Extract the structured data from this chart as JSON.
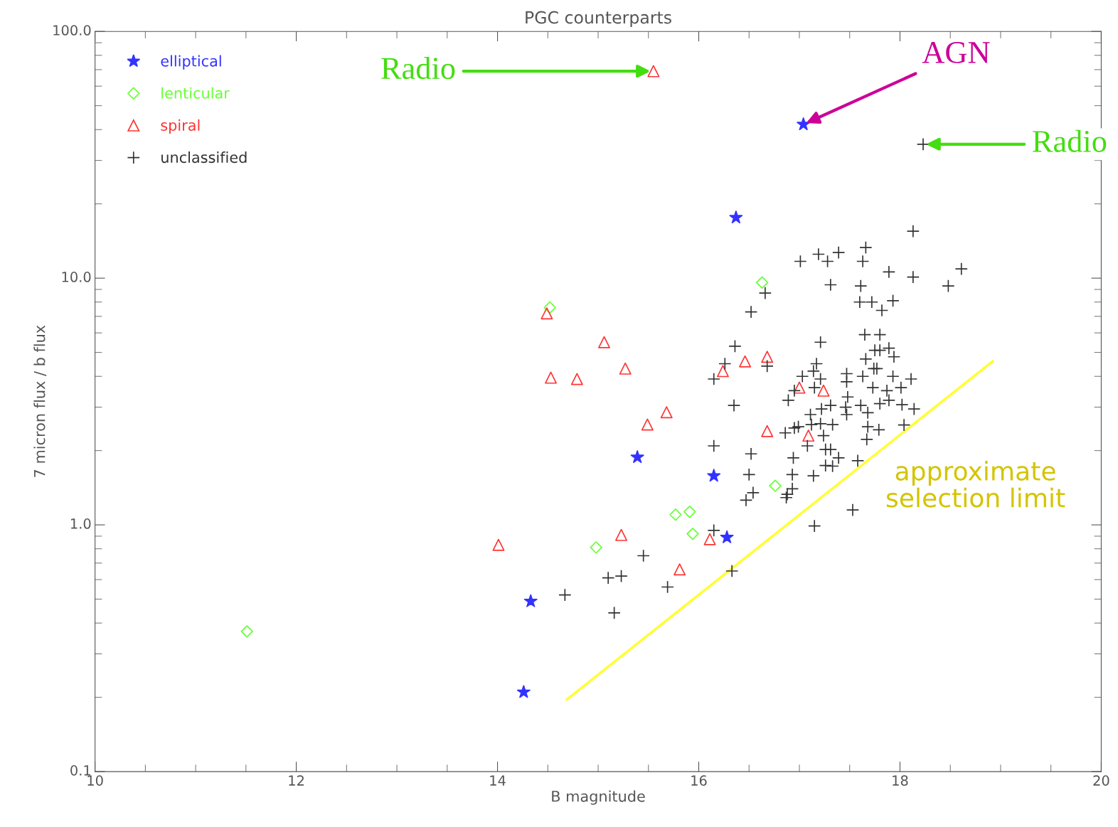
{
  "chart_data": {
    "type": "scatter",
    "title": "PGC counterparts",
    "xlabel": "B magnitude",
    "ylabel": "7 micron flux / b flux",
    "log": "y",
    "xlim": [
      10,
      20
    ],
    "xticks": [
      10,
      12,
      14,
      16,
      18,
      20
    ],
    "ylim": [
      0.1,
      100
    ],
    "yticks": [
      {
        "value": 0.1,
        "label": "0.1"
      },
      {
        "value": 1,
        "label": "1.0"
      },
      {
        "value": 10,
        "label": "10.0"
      },
      {
        "value": 100,
        "label": "100.0"
      }
    ],
    "grid": false,
    "legend": "top left",
    "series": [
      {
        "name": "elliptical",
        "color": "#3333ff",
        "marker": "star",
        "x": [
          17.04,
          16.37,
          15.39,
          16.15,
          16.28,
          14.33,
          14.26
        ],
        "values": [
          42,
          17.6,
          1.88,
          1.58,
          0.89,
          0.49,
          0.21
        ]
      },
      {
        "name": "lenticular",
        "color": "#66ff33",
        "marker": "diamond",
        "x": [
          14.52,
          16.63,
          16.76,
          15.77,
          15.91,
          15.94,
          14.98,
          11.51
        ],
        "values": [
          7.6,
          9.6,
          1.44,
          1.1,
          1.13,
          0.92,
          0.81,
          0.37
        ]
      },
      {
        "name": "spiral",
        "color": "#ff3333",
        "marker": "triangle",
        "x": [
          15.55,
          14.49,
          15.06,
          15.27,
          14.53,
          14.79,
          15.68,
          15.49,
          14.01,
          15.23,
          15.81,
          16.11,
          16.24,
          16.46,
          16.68,
          17.0,
          17.24,
          16.68,
          17.09
        ],
        "values": [
          69,
          7.2,
          5.5,
          4.3,
          3.95,
          3.9,
          2.86,
          2.55,
          0.83,
          0.91,
          0.66,
          0.875,
          4.2,
          4.6,
          4.8,
          3.6,
          3.5,
          2.4,
          2.3
        ]
      },
      {
        "name": "unclassified",
        "color": "#333333",
        "marker": "cross",
        "x": [
          18.23,
          18.13,
          17.66,
          17.39,
          17.19,
          17.28,
          17.01,
          17.63,
          18.61,
          17.89,
          18.13,
          17.31,
          17.61,
          18.48,
          16.66,
          16.52,
          17.6,
          17.72,
          17.93,
          17.82,
          17.21,
          17.65,
          17.8,
          17.75,
          17.8,
          17.89,
          17.94,
          16.36,
          16.26,
          16.68,
          16.15,
          17.17,
          17.66,
          17.74,
          17.77,
          17.14,
          17.21,
          17.47,
          17.47,
          17.63,
          17.93,
          18.11,
          17.03,
          17.15,
          16.95,
          17.73,
          17.87,
          18.01,
          16.89,
          17.48,
          16.35,
          17.31,
          17.22,
          17.46,
          17.61,
          17.68,
          17.8,
          17.89,
          18.02,
          18.14,
          17.11,
          17.47,
          16.95,
          16.99,
          17.12,
          17.21,
          17.33,
          17.68,
          17.79,
          18.04,
          16.86,
          17.24,
          16.15,
          16.52,
          16.94,
          17.26,
          17.31,
          17.39,
          17.58,
          17.26,
          17.33,
          17.67,
          17.08,
          16.5,
          16.93,
          17.14,
          16.54,
          16.47,
          16.93,
          16.88,
          16.87,
          17.53,
          17.15,
          16.15,
          16.33,
          15.45,
          15.1,
          15.23,
          15.69,
          14.67,
          15.16
        ],
        "values": [
          34.9,
          15.5,
          13.3,
          12.7,
          12.5,
          11.7,
          11.7,
          11.7,
          10.9,
          10.6,
          10.1,
          9.4,
          9.3,
          9.3,
          8.7,
          7.3,
          8.0,
          8.0,
          8.1,
          7.4,
          5.5,
          5.9,
          5.9,
          5.1,
          5.1,
          5.2,
          4.8,
          5.3,
          4.5,
          4.4,
          3.9,
          4.5,
          4.7,
          4.3,
          4.3,
          4.2,
          3.9,
          4.1,
          3.8,
          4.0,
          4.0,
          3.9,
          4.0,
          3.6,
          3.5,
          3.6,
          3.5,
          3.6,
          3.2,
          3.3,
          3.05,
          3.05,
          2.95,
          3.0,
          3.05,
          2.85,
          3.1,
          3.2,
          3.07,
          2.95,
          2.8,
          2.8,
          2.47,
          2.5,
          2.55,
          2.57,
          2.55,
          2.5,
          2.43,
          2.54,
          2.36,
          2.3,
          2.09,
          1.94,
          1.87,
          2.02,
          2.02,
          1.87,
          1.82,
          1.74,
          1.73,
          2.22,
          2.09,
          1.6,
          1.6,
          1.58,
          1.35,
          1.26,
          1.4,
          1.33,
          1.29,
          1.15,
          0.99,
          0.95,
          0.65,
          0.75,
          0.61,
          0.62,
          0.56,
          0.52,
          0.44
        ]
      },
      {
        "type": "line",
        "color": "#ffff33",
        "x": [
          14.69,
          18.92
        ],
        "values": [
          0.196,
          4.6
        ]
      }
    ],
    "annotations": [
      {
        "text": "Radio",
        "x": 15.55,
        "y": 69
      },
      {
        "text": "AGN",
        "x": 17.04,
        "y": 42
      },
      {
        "text": "Radio",
        "x": 18.23,
        "y": 34.9
      },
      "approximate\nselection limit"
    ]
  }
}
